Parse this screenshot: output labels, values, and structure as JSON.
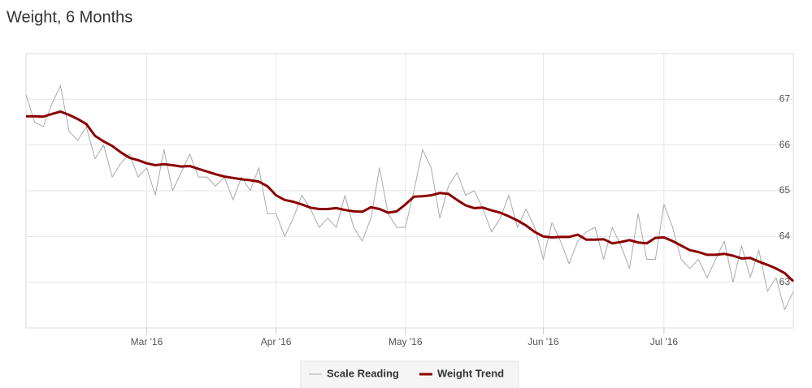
{
  "chart_data": {
    "type": "line",
    "title": "Weight, 6 Months",
    "categories": [
      null,
      null,
      null,
      null,
      null,
      null,
      null,
      null,
      null,
      null,
      null,
      null,
      null,
      null,
      "Mar '16",
      null,
      null,
      null,
      null,
      null,
      null,
      null,
      null,
      null,
      null,
      null,
      null,
      null,
      null,
      "Apr '16",
      null,
      null,
      null,
      null,
      null,
      null,
      null,
      null,
      null,
      null,
      null,
      null,
      null,
      null,
      "May '16",
      null,
      null,
      null,
      null,
      null,
      null,
      null,
      null,
      null,
      null,
      null,
      null,
      null,
      null,
      null,
      "Jun '16",
      null,
      null,
      null,
      null,
      null,
      null,
      null,
      null,
      null,
      null,
      null,
      null,
      null,
      "Jul '16",
      null,
      null,
      null,
      null,
      null,
      null,
      null,
      null,
      null,
      null,
      null,
      null,
      null,
      null,
      null
    ],
    "series": [
      {
        "name": "Scale Reading",
        "color": "#aaaaaa",
        "values": [
          67.1,
          66.5,
          66.4,
          66.9,
          67.3,
          66.3,
          66.1,
          66.4,
          65.7,
          66.0,
          65.3,
          65.6,
          65.8,
          65.3,
          65.5,
          64.9,
          65.9,
          65.0,
          65.4,
          65.8,
          65.3,
          65.3,
          65.1,
          65.3,
          64.8,
          65.3,
          65.0,
          65.5,
          64.5,
          64.5,
          64.0,
          64.4,
          64.9,
          64.6,
          64.2,
          64.4,
          64.2,
          64.9,
          64.2,
          63.9,
          64.4,
          65.5,
          64.5,
          64.2,
          64.2,
          65.0,
          65.9,
          65.5,
          64.4,
          65.1,
          65.4,
          64.9,
          65.0,
          64.6,
          64.1,
          64.4,
          64.9,
          64.2,
          64.6,
          64.2,
          63.5,
          64.3,
          63.9,
          63.4,
          63.9,
          64.1,
          64.2,
          63.5,
          64.2,
          63.8,
          63.3,
          64.5,
          63.5,
          63.5,
          64.7,
          64.2,
          63.5,
          63.3,
          63.5,
          63.1,
          63.5,
          63.9,
          63.0,
          63.8,
          63.1,
          63.7,
          62.8,
          63.1,
          62.4,
          62.8
        ]
      },
      {
        "name": "Weight Trend",
        "color": "#8b0000",
        "values": [
          66.63,
          66.63,
          66.62,
          66.68,
          66.73,
          66.66,
          66.57,
          66.46,
          66.2,
          66.08,
          65.98,
          65.84,
          65.72,
          65.67,
          65.6,
          65.56,
          65.58,
          65.56,
          65.53,
          65.54,
          65.48,
          65.42,
          65.36,
          65.31,
          65.28,
          65.25,
          65.23,
          65.2,
          65.1,
          64.9,
          64.8,
          64.76,
          64.7,
          64.63,
          64.6,
          64.6,
          64.62,
          64.58,
          64.55,
          64.54,
          64.64,
          64.6,
          64.52,
          64.55,
          64.7,
          64.87,
          64.88,
          64.9,
          64.95,
          64.93,
          64.8,
          64.68,
          64.62,
          64.63,
          64.57,
          64.52,
          64.44,
          64.35,
          64.24,
          64.1,
          64.0,
          63.98,
          63.99,
          63.99,
          64.04,
          63.93,
          63.93,
          63.94,
          63.85,
          63.88,
          63.92,
          63.87,
          63.85,
          63.97,
          63.98,
          63.9,
          63.8,
          63.7,
          63.66,
          63.6,
          63.6,
          63.62,
          63.58,
          63.52,
          63.53,
          63.45,
          63.38,
          63.3,
          63.2,
          63.02
        ]
      }
    ],
    "ylim": [
      62,
      68
    ],
    "yticks": [
      63,
      64,
      65,
      66,
      67
    ],
    "grid": true
  }
}
